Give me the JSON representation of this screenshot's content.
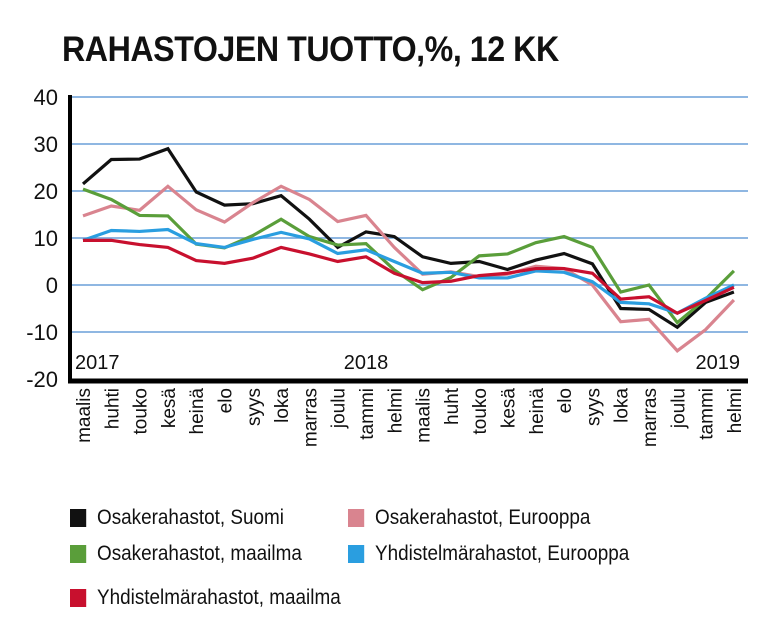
{
  "chart_data": {
    "type": "line",
    "title": "RAHASTOJEN TUOTTO,%, 12 KK",
    "categories": [
      "maalis",
      "huhti",
      "touko",
      "kesä",
      "heinä",
      "elo",
      "syys",
      "loka",
      "marras",
      "joulu",
      "tammi",
      "helmi",
      "maalis",
      "huht",
      "touko",
      "kesä",
      "heinä",
      "elo",
      "syys",
      "loka",
      "marras",
      "joulu",
      "tammi",
      "helmi"
    ],
    "year_labels": [
      {
        "label": "2017",
        "index": 0
      },
      {
        "label": "2018",
        "index": 10
      },
      {
        "label": "2019",
        "index": 22
      }
    ],
    "ylim": [
      -20,
      40
    ],
    "yticks": [
      40,
      30,
      20,
      10,
      0,
      -10,
      -20
    ],
    "grid": true,
    "grid_color": "#6a9fd8",
    "legend_placement": "bottom",
    "series": [
      {
        "name": "Osakerahastot, Suomi",
        "color": "#111111",
        "values": [
          21.5,
          26.7,
          26.8,
          29,
          19.8,
          17,
          17.3,
          19,
          14,
          8,
          11.3,
          10.3,
          6,
          4.6,
          5,
          3.3,
          5.3,
          6.7,
          4.5,
          -5,
          -5.2,
          -9,
          -3.7,
          -1.5
        ]
      },
      {
        "name": "Osakerahastot, Eurooppa",
        "color": "#d9848f",
        "values": [
          14.7,
          16.8,
          15.9,
          21,
          16,
          13.4,
          17.5,
          21,
          18.2,
          13.5,
          14.8,
          8,
          2.3,
          2.8,
          1.8,
          2.3,
          4,
          3.5,
          0,
          -7.8,
          -7.3,
          -14,
          -9.5,
          -3.2
        ]
      },
      {
        "name": "Osakerahastot, maailma",
        "color": "#5a9e3a",
        "values": [
          20.4,
          18.2,
          14.8,
          14.7,
          8.7,
          7.9,
          10.5,
          14,
          10.3,
          8.5,
          8.8,
          3.2,
          -1,
          1.6,
          6.2,
          6.6,
          9,
          10.3,
          8,
          -1.5,
          0,
          -8,
          -3,
          3
        ]
      },
      {
        "name": "Yhdistelmärahastot, Eurooppa",
        "color": "#2a9ee0",
        "values": [
          9.5,
          11.6,
          11.4,
          11.8,
          8.8,
          8,
          9.7,
          11.2,
          9.8,
          6.7,
          7.5,
          5,
          2.5,
          2.7,
          1.5,
          1.5,
          3,
          2.7,
          0.7,
          -3.7,
          -4,
          -6,
          -2.8,
          0
        ]
      },
      {
        "name": "Yhdistelmärahastot, maailma",
        "color": "#c8102e",
        "values": [
          9.5,
          9.5,
          8.6,
          8,
          5.2,
          4.6,
          5.7,
          8,
          6.6,
          5,
          6,
          2.5,
          0.5,
          0.8,
          2,
          2.5,
          3.5,
          3.5,
          2.5,
          -3,
          -2.5,
          -6,
          -3.3,
          -0.5
        ]
      }
    ]
  }
}
